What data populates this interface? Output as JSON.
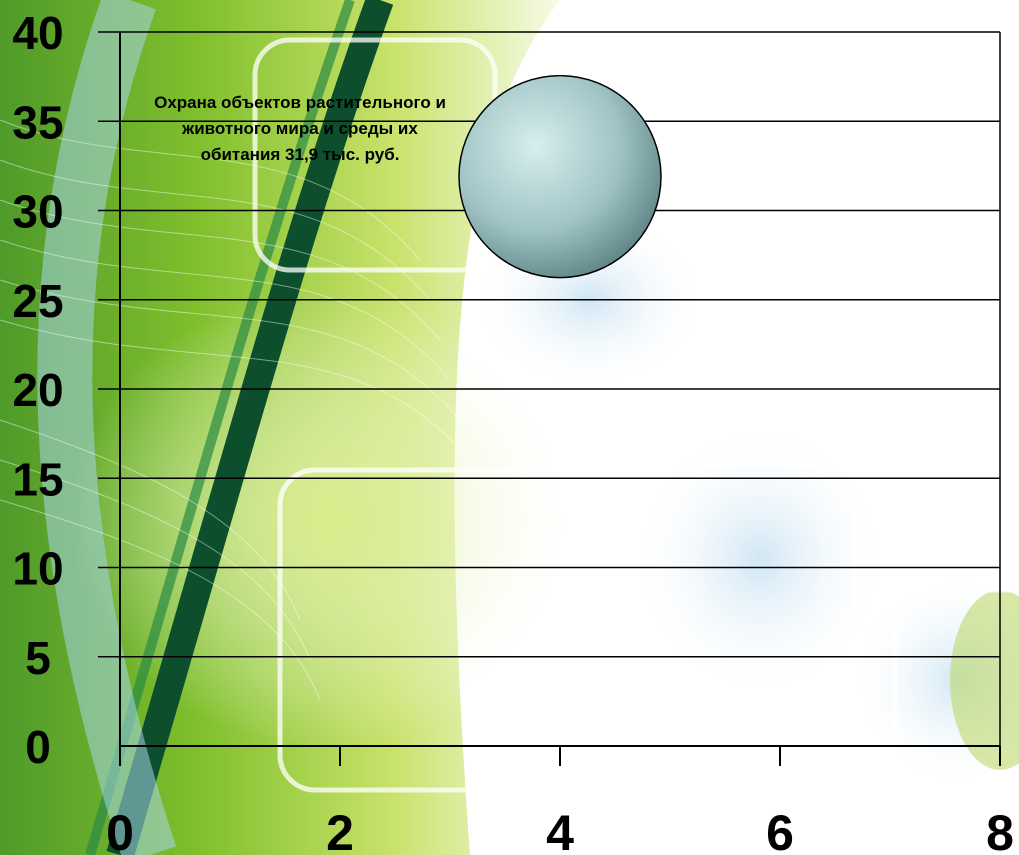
{
  "chart_data": {
    "type": "bubble",
    "title": "",
    "xlabel": "",
    "ylabel": "",
    "xlim": [
      0,
      8
    ],
    "ylim": [
      0,
      40
    ],
    "x_ticks": [
      0,
      2,
      4,
      6,
      8
    ],
    "y_ticks": [
      0,
      5,
      10,
      15,
      20,
      25,
      30,
      35,
      40
    ],
    "grid": "horizontal",
    "legend": "none",
    "series": [
      {
        "points": [
          {
            "x": 4,
            "y": 31.9
          }
        ]
      }
    ],
    "annotations": [
      {
        "text": "Охрана объектов растительного и животного мира и среды их обитания 31,9 тыс. руб."
      }
    ],
    "colors": {
      "bubble": "#9fc3c4",
      "bubble_highlight": "#d7eeee",
      "axis": "#000000",
      "grid": "#000000"
    }
  }
}
